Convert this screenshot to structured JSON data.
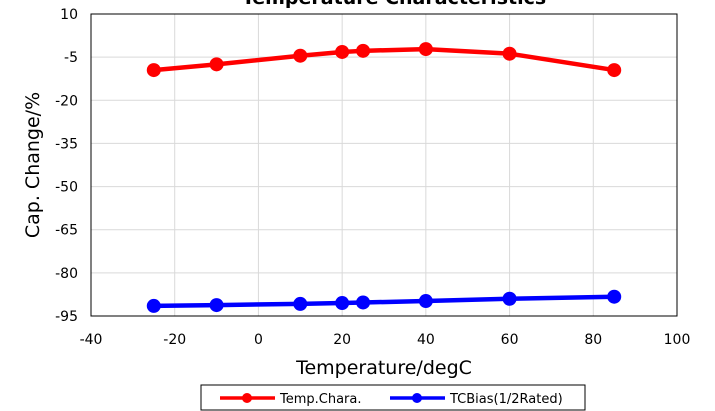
{
  "chart_data": {
    "type": "line",
    "title": "Temperature Characteristics",
    "xlabel": "Temperature/degC",
    "ylabel": "Cap. Change/%",
    "xlim": [
      -40,
      100
    ],
    "ylim": [
      -95,
      10
    ],
    "xticks": [
      -40,
      -20,
      0,
      20,
      40,
      60,
      80,
      100
    ],
    "yticks": [
      10,
      -5,
      -20,
      -35,
      -50,
      -65,
      -80,
      -95
    ],
    "grid": true,
    "legend_position": "bottom",
    "series": [
      {
        "name": "Temp.Chara.",
        "color": "#ff0000",
        "x": [
          -25,
          -10,
          10,
          20,
          25,
          40,
          60,
          85
        ],
        "y": [
          -9.5,
          -7.5,
          -4.5,
          -3.2,
          -2.8,
          -2.2,
          -3.8,
          -9.5
        ]
      },
      {
        "name": "TCBias(1/2Rated)",
        "color": "#0000ff",
        "x": [
          -25,
          -10,
          10,
          20,
          25,
          40,
          60,
          85
        ],
        "y": [
          -91.5,
          -91.2,
          -90.8,
          -90.5,
          -90.3,
          -89.8,
          -89.0,
          -88.3
        ]
      }
    ]
  }
}
